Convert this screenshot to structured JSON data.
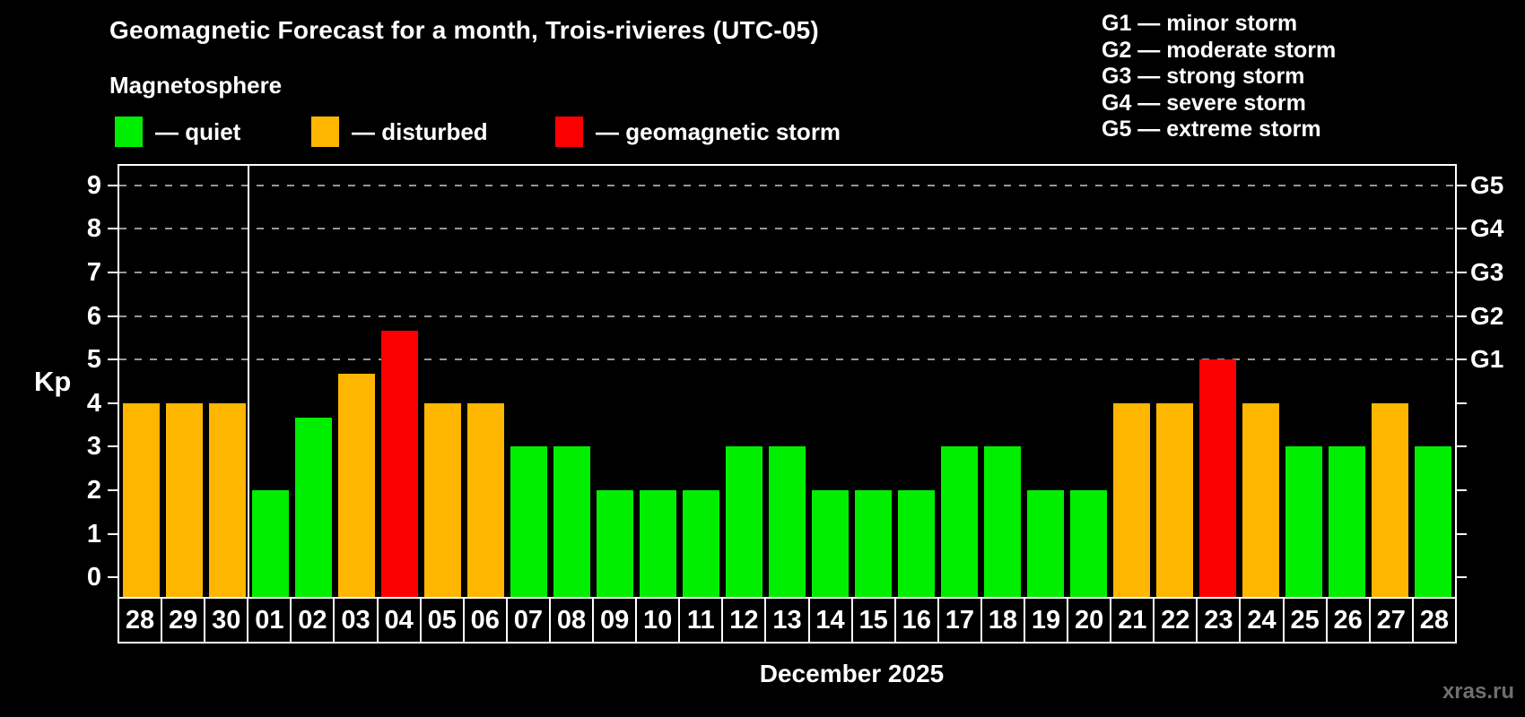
{
  "title": "Geomagnetic Forecast for a month, Trois-rivieres (UTC-05)",
  "subtitle": "Magnetosphere",
  "watermark": "xras.ru",
  "legend": {
    "items": [
      {
        "name": "quiet",
        "label": "— quiet",
        "color": "#00ef00"
      },
      {
        "name": "disturbed",
        "label": "— disturbed",
        "color": "#ffb600"
      },
      {
        "name": "storm",
        "label": "— geomagnetic storm",
        "color": "#fb0000"
      }
    ]
  },
  "g_legend": [
    "G1 — minor storm",
    "G2 — moderate storm",
    "G3 — strong storm",
    "G4 — severe storm",
    "G5 — extreme storm"
  ],
  "chart_data": {
    "type": "bar",
    "title": "Geomagnetic Forecast for a month, Trois-rivieres (UTC-05)",
    "xlabel": "December 2025",
    "ylabel": "Kp",
    "ylim": [
      0,
      9
    ],
    "y_ticks": [
      0,
      1,
      2,
      3,
      4,
      5,
      6,
      7,
      8,
      9
    ],
    "grid_levels": [
      5,
      6,
      7,
      8,
      9
    ],
    "grid_style": "dashed",
    "legend_position": "top",
    "categories": [
      "28",
      "29",
      "30",
      "01",
      "02",
      "03",
      "04",
      "05",
      "06",
      "07",
      "08",
      "09",
      "10",
      "11",
      "12",
      "13",
      "14",
      "15",
      "16",
      "17",
      "18",
      "19",
      "20",
      "21",
      "22",
      "23",
      "24",
      "25",
      "26",
      "27",
      "28"
    ],
    "values": [
      4,
      4,
      4,
      2,
      3.67,
      4.67,
      5.67,
      4,
      4,
      3,
      3,
      2,
      2,
      2,
      3,
      3,
      2,
      2,
      2,
      3,
      3,
      2,
      2,
      4,
      4,
      5,
      4,
      3,
      3,
      4,
      3
    ],
    "month_separator_after_index": 2,
    "thresholds": {
      "disturbed_from": 4,
      "storm_from": 5
    },
    "right_axis": [
      {
        "kp": 5,
        "label": "G1"
      },
      {
        "kp": 6,
        "label": "G2"
      },
      {
        "kp": 7,
        "label": "G3"
      },
      {
        "kp": 8,
        "label": "G4"
      },
      {
        "kp": 9,
        "label": "G5"
      }
    ]
  }
}
